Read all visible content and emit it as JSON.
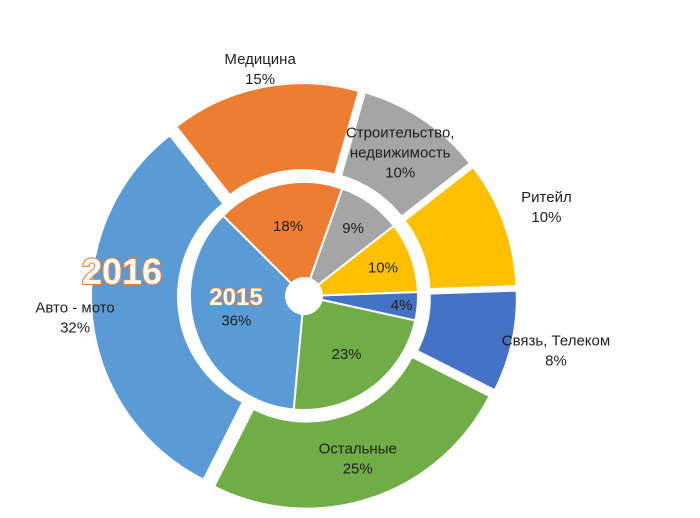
{
  "chart_data": {
    "type": "pie",
    "subtype": "nested-donut",
    "title": "",
    "rings": [
      {
        "name": "2016",
        "label": "2016",
        "slices": [
          {
            "label": "Связь, Телеком",
            "label_lines": [
              "Связь, Телеком"
            ],
            "value": 8,
            "value_text": "8%",
            "color": "#4472c4"
          },
          {
            "label": "Остальные",
            "label_lines": [
              "Остальные"
            ],
            "value": 25,
            "value_text": "25%",
            "color": "#70ad47"
          },
          {
            "label": "Авто - мото",
            "label_lines": [
              "Авто - мото"
            ],
            "value": 32,
            "value_text": "32%",
            "color": "#5b9bd5"
          },
          {
            "label": "Медицина",
            "label_lines": [
              "Медицина"
            ],
            "value": 15,
            "value_text": "15%",
            "color": "#ed7d31"
          },
          {
            "label": "Строительство, недвижимость",
            "label_lines": [
              "Строительство,",
              "недвижимость"
            ],
            "value": 10,
            "value_text": "10%",
            "color": "#a5a5a5"
          },
          {
            "label": "Ритейл",
            "label_lines": [
              "Ритейл"
            ],
            "value": 10,
            "value_text": "10%",
            "color": "#ffc000"
          }
        ]
      },
      {
        "name": "2015",
        "label": "2015",
        "slices": [
          {
            "label": "Связь, Телеком",
            "value": 4,
            "value_text": "4%",
            "color": "#4472c4"
          },
          {
            "label": "Остальные",
            "value": 23,
            "value_text": "23%",
            "color": "#70ad47"
          },
          {
            "label": "Авто - мото",
            "value": 36,
            "value_text": "36%",
            "color": "#5b9bd5"
          },
          {
            "label": "Медицина",
            "value": 18,
            "value_text": "18%",
            "color": "#ed7d31"
          },
          {
            "label": "Строительство, недвижимость",
            "value": 9,
            "value_text": "9%",
            "color": "#a5a5a5"
          },
          {
            "label": "Ритейл",
            "value": 10,
            "value_text": "10%",
            "color": "#ffc000"
          }
        ]
      }
    ]
  }
}
